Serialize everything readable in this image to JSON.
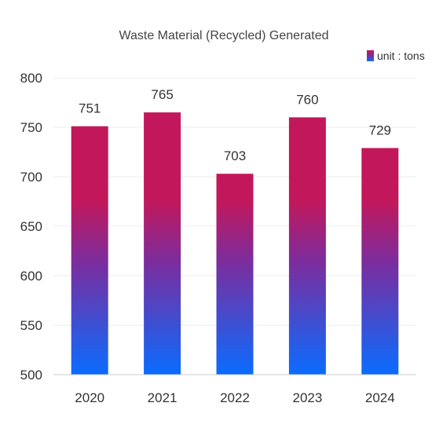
{
  "chart_data": {
    "type": "bar",
    "title": "Waste Material (Recycled) Generated",
    "categories": [
      "2020",
      "2021",
      "2022",
      "2023",
      "2024"
    ],
    "series": [
      {
        "name": "unit : tons",
        "values": [
          751,
          765,
          703,
          760,
          729
        ]
      }
    ],
    "ylim": [
      500,
      800
    ],
    "yticks": [
      500,
      550,
      600,
      650,
      700,
      750,
      800
    ],
    "grid": true,
    "legend": "top-right",
    "colors": {
      "bar_top": "#c2185b",
      "bar_mid": "#7b2d9e",
      "bar_bottom": "#0a6cff"
    }
  }
}
